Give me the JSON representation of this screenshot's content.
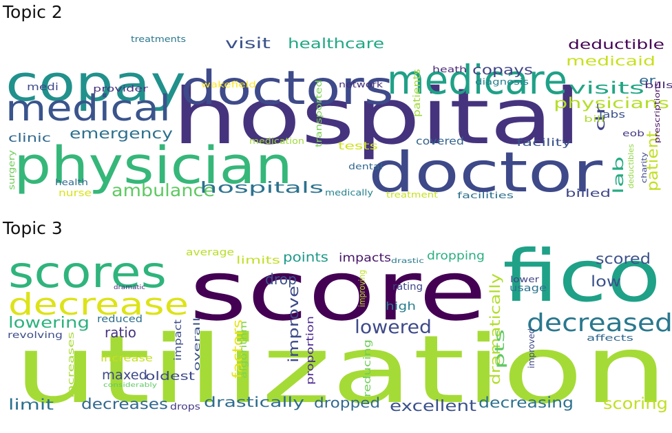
{
  "topics": [
    {
      "title": "Topic 2",
      "words": [
        {
          "text": "hospital",
          "color": "#46337e"
        },
        {
          "text": "copay",
          "color": "#21918c"
        },
        {
          "text": "doctors",
          "color": "#3e4a89"
        },
        {
          "text": "medicare",
          "color": "#1fa187"
        },
        {
          "text": "medical",
          "color": "#3a548c"
        },
        {
          "text": "physician",
          "color": "#35b779"
        },
        {
          "text": "doctor",
          "color": "#3e4989"
        },
        {
          "text": "emergency",
          "color": "#2d708e"
        },
        {
          "text": "ambulance",
          "color": "#5ec962"
        },
        {
          "text": "hospitals",
          "color": "#2c728e"
        },
        {
          "text": "visit",
          "color": "#3b528b"
        },
        {
          "text": "healthcare",
          "color": "#22a884"
        },
        {
          "text": "deductible",
          "color": "#440154"
        },
        {
          "text": "medicaid",
          "color": "#c8e020"
        },
        {
          "text": "copays",
          "color": "#414487"
        },
        {
          "text": "er",
          "color": "#31688e"
        },
        {
          "text": "visits",
          "color": "#21a685"
        },
        {
          "text": "physicians",
          "color": "#b5de2b"
        },
        {
          "text": "patient",
          "color": "#c2df23"
        },
        {
          "text": "lab",
          "color": "#25ab82"
        },
        {
          "text": "dr",
          "color": "#414487"
        },
        {
          "text": "labs",
          "color": "#3b528b"
        },
        {
          "text": "clinic",
          "color": "#31688e"
        },
        {
          "text": "medi",
          "color": "#3e4989"
        },
        {
          "text": "treatments",
          "color": "#2a788e"
        },
        {
          "text": "provider",
          "color": "#46327e"
        },
        {
          "text": "wakefield",
          "color": "#fde725"
        },
        {
          "text": "network",
          "color": "#472d7b"
        },
        {
          "text": "heath",
          "color": "#482878"
        },
        {
          "text": "diagnosis",
          "color": "#277f8e"
        },
        {
          "text": "bills",
          "color": "#472c7a"
        },
        {
          "text": "bill",
          "color": "#addc30"
        },
        {
          "text": "eob",
          "color": "#443983"
        },
        {
          "text": "prescriptions",
          "color": "#471063"
        },
        {
          "text": "facility",
          "color": "#3b528b"
        },
        {
          "text": "covered",
          "color": "#33638d"
        },
        {
          "text": "tests",
          "color": "#d0e11c"
        },
        {
          "text": "medication",
          "color": "#a0da39"
        },
        {
          "text": "transported",
          "color": "#7ad151"
        },
        {
          "text": "patients",
          "color": "#9fda3a"
        },
        {
          "text": "dental",
          "color": "#31688e"
        },
        {
          "text": "surgery",
          "color": "#6ece58"
        },
        {
          "text": "health",
          "color": "#31688e"
        },
        {
          "text": "nurse",
          "color": "#d8e219"
        },
        {
          "text": "medically",
          "color": "#26828e"
        },
        {
          "text": "treatment",
          "color": "#c8e020"
        },
        {
          "text": "facilities",
          "color": "#2e6f8e"
        },
        {
          "text": "billed",
          "color": "#3f4889"
        },
        {
          "text": "deductibles",
          "color": "#90d743"
        },
        {
          "text": "charity",
          "color": "#3e4a89"
        }
      ]
    },
    {
      "title": "Topic 3",
      "words": [
        {
          "text": "score",
          "color": "#440154"
        },
        {
          "text": "utilization",
          "color": "#a5db36"
        },
        {
          "text": "fico",
          "color": "#1fa187"
        },
        {
          "text": "scores",
          "color": "#2fb47c"
        },
        {
          "text": "decrease",
          "color": "#dde318"
        },
        {
          "text": "decreased",
          "color": "#2a788e"
        },
        {
          "text": "lowered",
          "color": "#3e4a89"
        },
        {
          "text": "lowering",
          "color": "#2db27d"
        },
        {
          "text": "scored",
          "color": "#3b528b"
        },
        {
          "text": "low",
          "color": "#3b528b"
        },
        {
          "text": "drop",
          "color": "#3b528b"
        },
        {
          "text": "points",
          "color": "#1f998a"
        },
        {
          "text": "impacts",
          "color": "#481668"
        },
        {
          "text": "dropping",
          "color": "#2ab07f"
        },
        {
          "text": "limits",
          "color": "#c0df25"
        },
        {
          "text": "average",
          "color": "#b8de29"
        },
        {
          "text": "drastic",
          "color": "#2a788e"
        },
        {
          "text": "rating",
          "color": "#3f4788"
        },
        {
          "text": "high",
          "color": "#287d8e"
        },
        {
          "text": "lower",
          "color": "#414487"
        },
        {
          "text": "usage",
          "color": "#2c728e"
        },
        {
          "text": "dramatically",
          "color": "#b2dd2d"
        },
        {
          "text": "improving",
          "color": "#bddf26"
        },
        {
          "text": "ratio",
          "color": "#46337e"
        },
        {
          "text": "reduced",
          "color": "#2e6e8e"
        },
        {
          "text": "revolving",
          "color": "#3d4d8a"
        },
        {
          "text": "increase",
          "color": "#c5e021"
        },
        {
          "text": "maxed",
          "color": "#3e4989"
        },
        {
          "text": "oldest",
          "color": "#3e4989"
        },
        {
          "text": "factors",
          "color": "#e5e419"
        },
        {
          "text": "algorithm",
          "color": "#7fd34e"
        },
        {
          "text": "improve",
          "color": "#3e4989"
        },
        {
          "text": "proportion",
          "color": "#4b2991"
        },
        {
          "text": "impact",
          "color": "#3d4e8a"
        },
        {
          "text": "overall",
          "color": "#3b528b"
        },
        {
          "text": "reducing",
          "color": "#6ece58"
        },
        {
          "text": "pts",
          "color": "#5ec962"
        },
        {
          "text": "improved",
          "color": "#3e4989"
        },
        {
          "text": "affects",
          "color": "#31688e"
        },
        {
          "text": "increases",
          "color": "#a8db34"
        },
        {
          "text": "considerably",
          "color": "#5ec962"
        },
        {
          "text": "limit",
          "color": "#2d718e"
        },
        {
          "text": "decreases",
          "color": "#31688e"
        },
        {
          "text": "drops",
          "color": "#443a83"
        },
        {
          "text": "drastically",
          "color": "#2f6c8e"
        },
        {
          "text": "dropped",
          "color": "#31688e"
        },
        {
          "text": "excellent",
          "color": "#3b528b"
        },
        {
          "text": "decreasing",
          "color": "#2c718e"
        },
        {
          "text": "scoring",
          "color": "#c0df25"
        },
        {
          "text": "dramatic",
          "color": "#46327e"
        }
      ]
    }
  ]
}
